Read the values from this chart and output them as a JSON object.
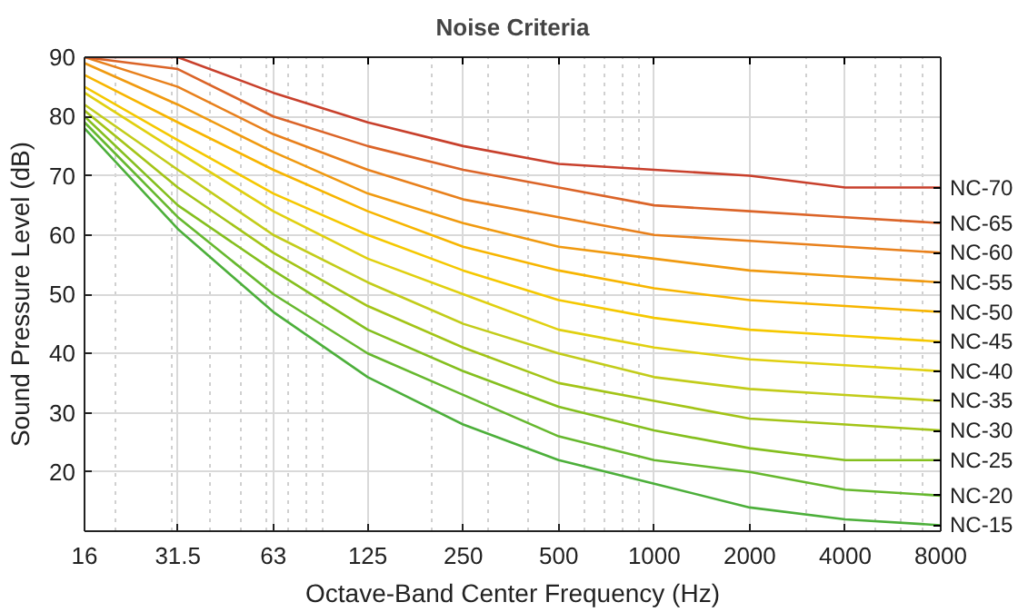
{
  "chart_data": {
    "type": "line",
    "title": "Noise Criteria",
    "xlabel": "Octave-Band Center Frequency (Hz)",
    "ylabel": "Sound Pressure Level (dB)",
    "x": [
      16,
      31.5,
      63,
      125,
      250,
      500,
      1000,
      2000,
      4000,
      8000
    ],
    "log": "x",
    "xlim": [
      16,
      8000
    ],
    "xticks": [
      16,
      31.5,
      63,
      125,
      250,
      500,
      1000,
      2000,
      4000,
      8000
    ],
    "ylim": [
      10,
      90
    ],
    "yticks": [
      20,
      30,
      40,
      50,
      60,
      70,
      80,
      90
    ],
    "grid": true,
    "marker": "none",
    "line_style": "solid",
    "series": [
      {
        "name": "NC-15",
        "color": "#4caf3a",
        "values": [
          78,
          61,
          47,
          36,
          28,
          22,
          18,
          14,
          12,
          11
        ]
      },
      {
        "name": "NC-20",
        "color": "#66b82e",
        "values": [
          79,
          63,
          50,
          40,
          33,
          26,
          22,
          20,
          17,
          16
        ]
      },
      {
        "name": "NC-25",
        "color": "#84bf1e",
        "values": [
          80,
          65,
          54,
          44,
          37,
          31,
          27,
          24,
          22,
          22
        ]
      },
      {
        "name": "NC-30",
        "color": "#a3c417",
        "values": [
          81,
          68,
          57,
          48,
          41,
          35,
          32,
          29,
          28,
          27
        ]
      },
      {
        "name": "NC-35",
        "color": "#c2cc1a",
        "values": [
          82,
          71,
          60,
          52,
          45,
          40,
          36,
          34,
          33,
          32
        ]
      },
      {
        "name": "NC-40",
        "color": "#e0d010",
        "values": [
          84,
          74,
          64,
          56,
          50,
          44,
          41,
          39,
          38,
          37
        ]
      },
      {
        "name": "NC-45",
        "color": "#f5c800",
        "values": [
          85,
          76,
          67,
          60,
          54,
          49,
          46,
          44,
          43,
          42
        ]
      },
      {
        "name": "NC-50",
        "color": "#f7b500",
        "values": [
          87,
          79,
          71,
          64,
          58,
          54,
          51,
          49,
          48,
          47
        ]
      },
      {
        "name": "NC-55",
        "color": "#f09a10",
        "values": [
          89,
          82,
          74,
          67,
          62,
          58,
          56,
          54,
          53,
          52
        ]
      },
      {
        "name": "NC-60",
        "color": "#e8801c",
        "values": [
          90,
          85,
          77,
          71,
          66,
          63,
          60,
          59,
          58,
          57
        ]
      },
      {
        "name": "NC-65",
        "color": "#db6428",
        "values": [
          90,
          88,
          80,
          75,
          71,
          68,
          65,
          64,
          63,
          62
        ]
      },
      {
        "name": "NC-70",
        "color": "#c8402c",
        "values": [
          90,
          90,
          84,
          79,
          75,
          72,
          71,
          70,
          68,
          68
        ]
      }
    ]
  }
}
